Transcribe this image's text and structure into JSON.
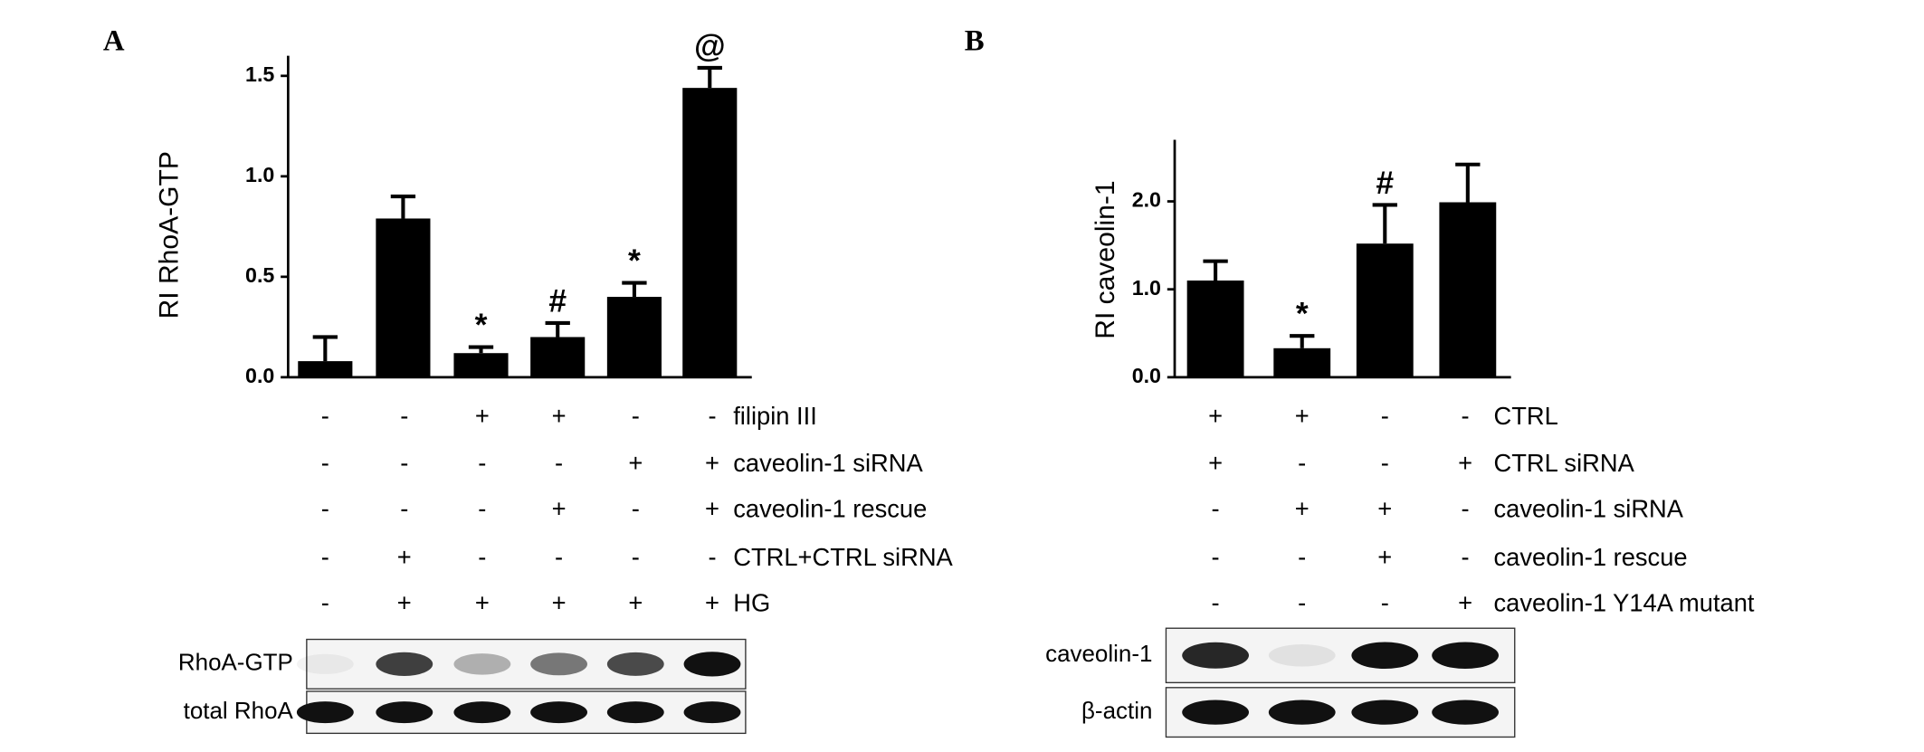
{
  "chart_data": [
    {
      "type": "bar",
      "panel": "A",
      "ylabel": "RI RhoA-GTP",
      "color": "#000000",
      "categories": [
        null,
        null,
        null,
        null,
        null,
        null
      ],
      "values": [
        0.08,
        0.79,
        0.12,
        0.2,
        0.4,
        1.44
      ],
      "errors": [
        0.12,
        0.11,
        0.03,
        0.07,
        0.07,
        0.1
      ],
      "annotations": [
        null,
        null,
        "*",
        "#",
        "*",
        "@"
      ],
      "ylim": [
        0,
        1.6
      ],
      "yticks": [
        {
          "value": 0,
          "label": "0.0"
        },
        {
          "value": 0.5,
          "label": "0.5"
        },
        {
          "value": 1,
          "label": "1.0"
        },
        {
          "value": 1.5,
          "label": "1.5"
        }
      ],
      "treatments": [
        {
          "label": "filipin III",
          "signs": [
            "-",
            "-",
            "+",
            "+",
            "-",
            "-"
          ]
        },
        {
          "label": "caveolin-1 siRNA",
          "signs": [
            "-",
            "-",
            "-",
            "-",
            "+",
            "+"
          ]
        },
        {
          "label": "caveolin-1 rescue",
          "signs": [
            "-",
            "-",
            "-",
            "+",
            "-",
            "+"
          ]
        },
        {
          "label": "CTRL+CTRL siRNA",
          "signs": [
            "-",
            "+",
            "-",
            "-",
            "-",
            "-"
          ]
        },
        {
          "label": "HG",
          "signs": [
            "-",
            "+",
            "+",
            "+",
            "+",
            "+"
          ]
        }
      ],
      "blots": [
        "RhoA-GTP",
        "total RhoA"
      ]
    },
    {
      "type": "bar",
      "panel": "B",
      "ylabel": "RI caveolin-1",
      "color": "#000000",
      "categories": [
        null,
        null,
        null,
        null
      ],
      "values": [
        1.1,
        0.33,
        1.52,
        1.99
      ],
      "errors": [
        0.22,
        0.14,
        0.44,
        0.43
      ],
      "annotations": [
        null,
        "*",
        "#",
        null
      ],
      "ylim": [
        0,
        2.7
      ],
      "yticks": [
        {
          "value": 0,
          "label": "0.0"
        },
        {
          "value": 1,
          "label": "1.0"
        },
        {
          "value": 2,
          "label": "2.0"
        }
      ],
      "treatments": [
        {
          "label": "CTRL",
          "signs": [
            "+",
            "+",
            "-",
            "-"
          ]
        },
        {
          "label": "CTRL siRNA",
          "signs": [
            "+",
            "-",
            "-",
            "+"
          ]
        },
        {
          "label": "caveolin-1 siRNA",
          "signs": [
            "-",
            "+",
            "+",
            "-"
          ]
        },
        {
          "label": "caveolin-1 rescue",
          "signs": [
            "-",
            "-",
            "+",
            "-"
          ]
        },
        {
          "label": "caveolin-1 Y14A mutant",
          "signs": [
            "-",
            "-",
            "-",
            "+"
          ]
        }
      ],
      "blots": [
        "caveolin-1",
        "β-actin"
      ]
    }
  ]
}
